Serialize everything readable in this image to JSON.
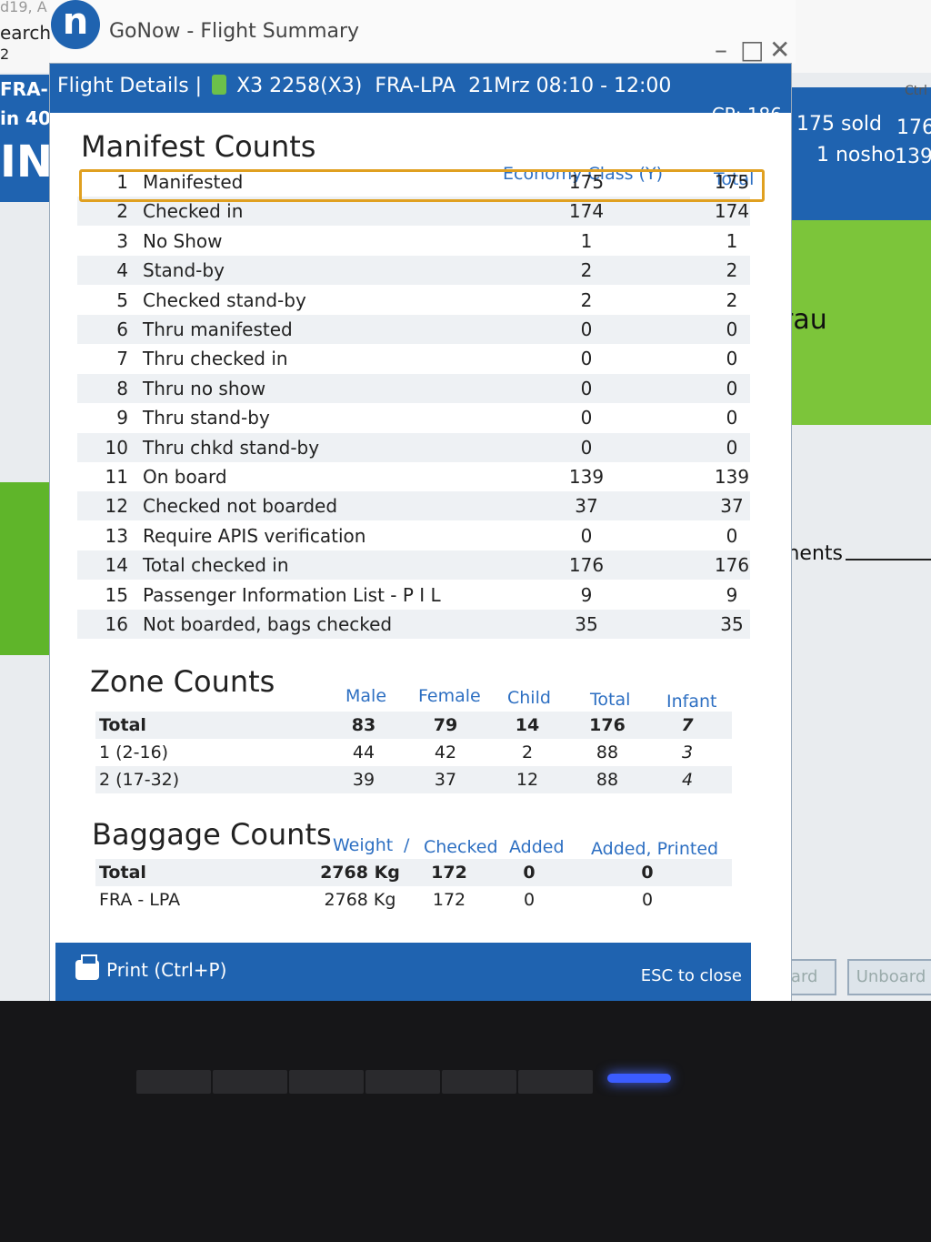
{
  "window": {
    "app_logo_letter": "n",
    "title": "GoNow - Flight Summary",
    "controls": {
      "minimize": "–",
      "maximize": "□",
      "close": "✕"
    }
  },
  "background": {
    "left_texts": [
      "d19, A",
      "earch",
      "2",
      "FRA-L",
      "in 40",
      "IN"
    ],
    "right_texts": {
      "ctrl": "Ctrl",
      "sold": "175 sold",
      "sold_val": "176",
      "nosho": "1 nosho",
      "nosho_val": "139",
      "au": "rau",
      "ments": "ments"
    },
    "buttons": [
      "Board",
      "Unboard"
    ]
  },
  "dialog": {
    "header": {
      "label": "Flight Details |",
      "flight": "X3 2258(X3)",
      "route": "FRA-LPA",
      "time": "21Mrz 08:10 - 12:00",
      "cp": "CP: 186"
    },
    "manifest": {
      "title": "Manifest Counts",
      "columns": [
        "Economy Class (Y)",
        "Total"
      ],
      "rows": [
        {
          "n": "1",
          "label": "Manifested",
          "y": "175",
          "total": "175"
        },
        {
          "n": "2",
          "label": "Checked in",
          "y": "174",
          "total": "174"
        },
        {
          "n": "3",
          "label": "No Show",
          "y": "1",
          "total": "1"
        },
        {
          "n": "4",
          "label": "Stand-by",
          "y": "2",
          "total": "2"
        },
        {
          "n": "5",
          "label": "Checked stand-by",
          "y": "2",
          "total": "2"
        },
        {
          "n": "6",
          "label": "Thru manifested",
          "y": "0",
          "total": "0"
        },
        {
          "n": "7",
          "label": "Thru checked in",
          "y": "0",
          "total": "0"
        },
        {
          "n": "8",
          "label": "Thru no show",
          "y": "0",
          "total": "0"
        },
        {
          "n": "9",
          "label": "Thru stand-by",
          "y": "0",
          "total": "0"
        },
        {
          "n": "10",
          "label": "Thru chkd stand-by",
          "y": "0",
          "total": "0"
        },
        {
          "n": "11",
          "label": "On board",
          "y": "139",
          "total": "139"
        },
        {
          "n": "12",
          "label": "Checked not boarded",
          "y": "37",
          "total": "37"
        },
        {
          "n": "13",
          "label": "Require APIS verification",
          "y": "0",
          "total": "0"
        },
        {
          "n": "14",
          "label": "Total checked in",
          "y": "176",
          "total": "176"
        },
        {
          "n": "15",
          "label": "Passenger Information List - P I L",
          "y": "9",
          "total": "9"
        },
        {
          "n": "16",
          "label": "Not boarded, bags checked",
          "y": "35",
          "total": "35"
        }
      ]
    },
    "zone": {
      "title": "Zone Counts",
      "columns": [
        "Male",
        "Female",
        "Child",
        "Total",
        "Infant"
      ],
      "rows": [
        {
          "label": "Total",
          "male": "83",
          "female": "79",
          "child": "14",
          "total": "176",
          "infant": "7"
        },
        {
          "label": "1 (2-16)",
          "male": "44",
          "female": "42",
          "child": "2",
          "total": "88",
          "infant": "3"
        },
        {
          "label": "2 (17-32)",
          "male": "39",
          "female": "37",
          "child": "12",
          "total": "88",
          "infant": "4"
        }
      ]
    },
    "baggage": {
      "title": "Baggage Counts",
      "columns": [
        "Weight",
        "/",
        "Checked",
        "Added",
        "Added, Printed"
      ],
      "rows": [
        {
          "label": "Total",
          "weight": "2768 Kg",
          "checked": "172",
          "added": "0",
          "printed": "0"
        },
        {
          "label": "FRA - LPA",
          "weight": "2768 Kg",
          "checked": "172",
          "added": "0",
          "printed": "0"
        }
      ]
    },
    "footer": {
      "print": "Print (Ctrl+P)",
      "esc": "ESC to close"
    }
  }
}
